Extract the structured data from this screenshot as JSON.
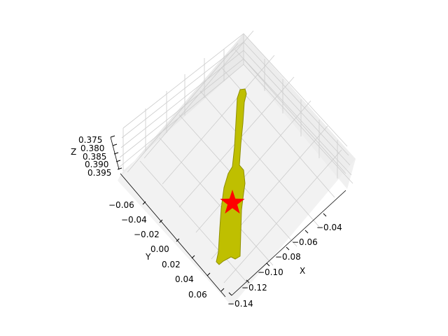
{
  "chart_data": {
    "type": "scatter",
    "projection": "3d",
    "grid": true,
    "axes": {
      "x": {
        "label": "X",
        "ticks": [
          "−0.14",
          "−0.12",
          "−0.10",
          "−0.08",
          "−0.06",
          "−0.04"
        ],
        "range": [
          -0.15,
          -0.03
        ]
      },
      "y": {
        "label": "Y",
        "ticks": [
          "−0.06",
          "−0.04",
          "−0.02",
          "0.00",
          "0.02",
          "0.04",
          "0.06"
        ],
        "range": [
          -0.07,
          0.07
        ]
      },
      "z": {
        "label": "Z",
        "ticks": [
          "0.375",
          "0.380",
          "0.385",
          "0.390",
          "0.395"
        ],
        "range": [
          0.373,
          0.397
        ]
      }
    },
    "series": [
      {
        "kind": "point-cloud",
        "color": "#bfbf00"
      },
      {
        "kind": "marker",
        "marker": "star",
        "color": "#ff0000",
        "x": -0.105,
        "y": 0.0
      }
    ]
  },
  "colors": {
    "pane": "#f2f2f2",
    "pane_side": "#e6e6e6",
    "grid": "#cccccc",
    "cloud": "#bfbf00",
    "cloud_edge": "#8f8f00",
    "star": "#ff0000"
  }
}
